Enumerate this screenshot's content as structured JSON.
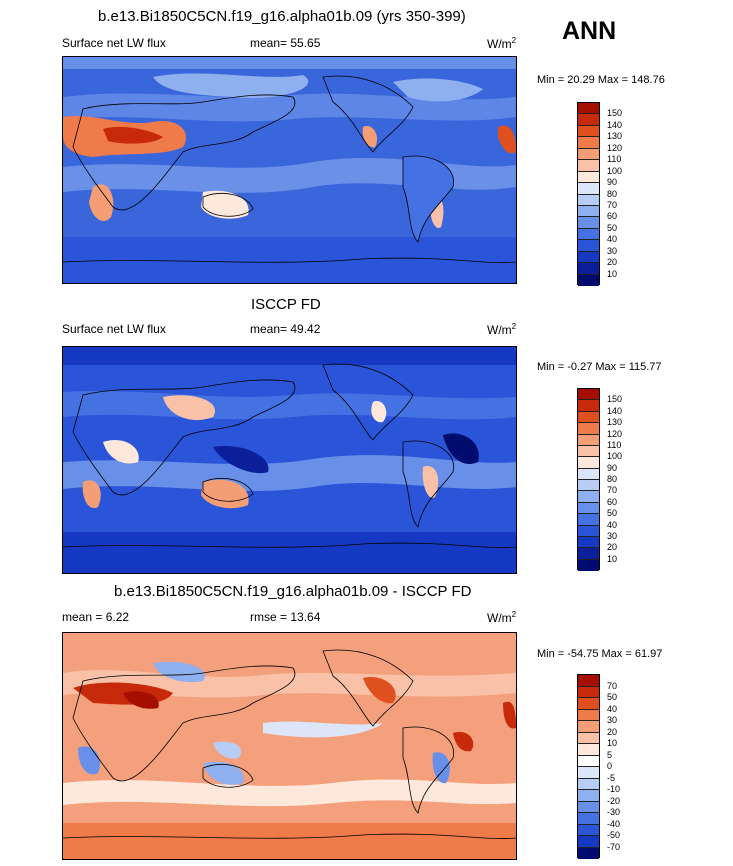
{
  "season": "ANN",
  "panels": [
    {
      "title": "b.e13.Bi1850C5CN.f19_g16.alpha01b.09 (yrs 350-399)",
      "variable": "Surface net LW flux",
      "stat": "mean=  55.65",
      "units": "W/m",
      "units_exp": "2",
      "minmax": "Min =  20.29 Max = 148.76",
      "colorbar_labels": [
        "150",
        "140",
        "130",
        "120",
        "110",
        "100",
        "90",
        "80",
        "70",
        "60",
        "50",
        "40",
        "30",
        "20",
        "10"
      ],
      "colors": [
        "#a50f00",
        "#c72a0a",
        "#e0501e",
        "#ef7a4a",
        "#f59e76",
        "#f9c2a8",
        "#fde8db",
        "#dde6f8",
        "#b8cdf5",
        "#8fb0ee",
        "#6890e8",
        "#4472e2",
        "#2a55d8",
        "#1539c2",
        "#0a1f99",
        "#000b6e"
      ]
    },
    {
      "title": "ISCCP FD",
      "variable": "Surface net LW flux",
      "stat": "mean=  49.42",
      "units": "W/m",
      "units_exp": "2",
      "minmax": "Min =  -0.27 Max = 115.77",
      "colorbar_labels": [
        "150",
        "140",
        "130",
        "120",
        "110",
        "100",
        "90",
        "80",
        "70",
        "60",
        "50",
        "40",
        "30",
        "20",
        "10"
      ],
      "colors": [
        "#a50f00",
        "#c72a0a",
        "#e0501e",
        "#ef7a4a",
        "#f59e76",
        "#f9c2a8",
        "#fde8db",
        "#dde6f8",
        "#b8cdf5",
        "#8fb0ee",
        "#6890e8",
        "#4472e2",
        "#2a55d8",
        "#1539c2",
        "#0a1f99",
        "#000b6e"
      ]
    },
    {
      "title": "b.e13.Bi1850C5CN.f19_g16.alpha01b.09 - ISCCP FD",
      "variable": "mean =  6.22",
      "stat": "rmse =  13.64",
      "units": "W/m",
      "units_exp": "2",
      "minmax": "Min = -54.75 Max =  61.97",
      "colorbar_labels": [
        "70",
        "50",
        "40",
        "30",
        "20",
        "10",
        "5",
        "0",
        "-5",
        "-10",
        "-20",
        "-30",
        "-40",
        "-50",
        "-70"
      ],
      "colors": [
        "#a50f00",
        "#c72a0a",
        "#e0501e",
        "#ef7a4a",
        "#f59e76",
        "#f9c2a8",
        "#fde8db",
        "#ffffff",
        "#dde6f8",
        "#b8cdf5",
        "#8fb0ee",
        "#6890e8",
        "#4472e2",
        "#2a55d8",
        "#1539c2",
        "#000b6e"
      ]
    }
  ]
}
